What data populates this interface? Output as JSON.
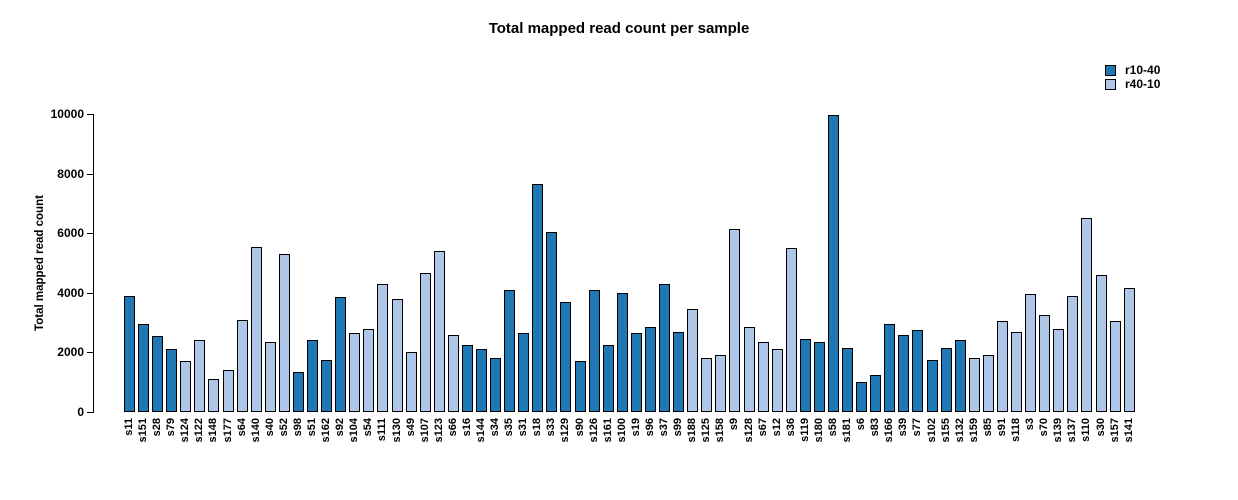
{
  "title": "Total mapped read count per sample",
  "legend": {
    "items": [
      {
        "label": "r10-40",
        "color": "#1f77b4"
      },
      {
        "label": "r40-10",
        "color": "#aec7e8"
      }
    ]
  },
  "chart_data": {
    "type": "bar",
    "title": "Total mapped read count per sample",
    "xlabel": "",
    "ylabel": "Total mapped read count",
    "ylim": [
      0,
      10000
    ],
    "yticks": [
      0,
      2000,
      4000,
      6000,
      8000,
      10000
    ],
    "grid": false,
    "legend_position": "top-right",
    "series_colors": {
      "r10-40": "#1f77b4",
      "r40-10": "#aec7e8"
    },
    "bar_border_color": "#000000",
    "bars": [
      {
        "sample": "s11",
        "value": 3900,
        "group": "r10-40"
      },
      {
        "sample": "s151",
        "value": 2950,
        "group": "r10-40"
      },
      {
        "sample": "s28",
        "value": 2550,
        "group": "r10-40"
      },
      {
        "sample": "s79",
        "value": 2100,
        "group": "r10-40"
      },
      {
        "sample": "s124",
        "value": 1700,
        "group": "r40-10"
      },
      {
        "sample": "s122",
        "value": 2400,
        "group": "r40-10"
      },
      {
        "sample": "s148",
        "value": 1100,
        "group": "r40-10"
      },
      {
        "sample": "s177",
        "value": 1400,
        "group": "r40-10"
      },
      {
        "sample": "s64",
        "value": 3100,
        "group": "r40-10"
      },
      {
        "sample": "s140",
        "value": 5550,
        "group": "r40-10"
      },
      {
        "sample": "s40",
        "value": 2350,
        "group": "r40-10"
      },
      {
        "sample": "s52",
        "value": 5300,
        "group": "r40-10"
      },
      {
        "sample": "s98",
        "value": 1350,
        "group": "r10-40"
      },
      {
        "sample": "s51",
        "value": 2400,
        "group": "r10-40"
      },
      {
        "sample": "s162",
        "value": 1750,
        "group": "r10-40"
      },
      {
        "sample": "s92",
        "value": 3850,
        "group": "r10-40"
      },
      {
        "sample": "s104",
        "value": 2650,
        "group": "r40-10"
      },
      {
        "sample": "s54",
        "value": 2800,
        "group": "r40-10"
      },
      {
        "sample": "s111",
        "value": 4300,
        "group": "r40-10"
      },
      {
        "sample": "s130",
        "value": 3800,
        "group": "r40-10"
      },
      {
        "sample": "s49",
        "value": 2000,
        "group": "r40-10"
      },
      {
        "sample": "s107",
        "value": 4650,
        "group": "r40-10"
      },
      {
        "sample": "s123",
        "value": 5400,
        "group": "r40-10"
      },
      {
        "sample": "s66",
        "value": 2600,
        "group": "r40-10"
      },
      {
        "sample": "s16",
        "value": 2250,
        "group": "r10-40"
      },
      {
        "sample": "s144",
        "value": 2100,
        "group": "r10-40"
      },
      {
        "sample": "s34",
        "value": 1800,
        "group": "r10-40"
      },
      {
        "sample": "s35",
        "value": 4100,
        "group": "r10-40"
      },
      {
        "sample": "s31",
        "value": 2650,
        "group": "r10-40"
      },
      {
        "sample": "s18",
        "value": 7650,
        "group": "r10-40"
      },
      {
        "sample": "s33",
        "value": 6050,
        "group": "r10-40"
      },
      {
        "sample": "s129",
        "value": 3700,
        "group": "r10-40"
      },
      {
        "sample": "s90",
        "value": 1700,
        "group": "r10-40"
      },
      {
        "sample": "s126",
        "value": 4100,
        "group": "r10-40"
      },
      {
        "sample": "s161",
        "value": 2250,
        "group": "r10-40"
      },
      {
        "sample": "s100",
        "value": 4000,
        "group": "r10-40"
      },
      {
        "sample": "s19",
        "value": 2650,
        "group": "r10-40"
      },
      {
        "sample": "s96",
        "value": 2850,
        "group": "r10-40"
      },
      {
        "sample": "s37",
        "value": 4300,
        "group": "r10-40"
      },
      {
        "sample": "s99",
        "value": 2700,
        "group": "r10-40"
      },
      {
        "sample": "s188",
        "value": 3450,
        "group": "r40-10"
      },
      {
        "sample": "s125",
        "value": 1800,
        "group": "r40-10"
      },
      {
        "sample": "s158",
        "value": 1900,
        "group": "r40-10"
      },
      {
        "sample": "s9",
        "value": 6150,
        "group": "r40-10"
      },
      {
        "sample": "s128",
        "value": 2850,
        "group": "r40-10"
      },
      {
        "sample": "s67",
        "value": 2350,
        "group": "r40-10"
      },
      {
        "sample": "s12",
        "value": 2100,
        "group": "r40-10"
      },
      {
        "sample": "s36",
        "value": 5500,
        "group": "r40-10"
      },
      {
        "sample": "s119",
        "value": 2450,
        "group": "r10-40"
      },
      {
        "sample": "s180",
        "value": 2350,
        "group": "r10-40"
      },
      {
        "sample": "s58",
        "value": 9950,
        "group": "r10-40"
      },
      {
        "sample": "s181",
        "value": 2150,
        "group": "r10-40"
      },
      {
        "sample": "s6",
        "value": 1000,
        "group": "r10-40"
      },
      {
        "sample": "s83",
        "value": 1250,
        "group": "r10-40"
      },
      {
        "sample": "s166",
        "value": 2950,
        "group": "r10-40"
      },
      {
        "sample": "s39",
        "value": 2600,
        "group": "r10-40"
      },
      {
        "sample": "s77",
        "value": 2750,
        "group": "r10-40"
      },
      {
        "sample": "s102",
        "value": 1750,
        "group": "r10-40"
      },
      {
        "sample": "s155",
        "value": 2150,
        "group": "r10-40"
      },
      {
        "sample": "s132",
        "value": 2400,
        "group": "r10-40"
      },
      {
        "sample": "s159",
        "value": 1800,
        "group": "r40-10"
      },
      {
        "sample": "s85",
        "value": 1900,
        "group": "r40-10"
      },
      {
        "sample": "s91",
        "value": 3050,
        "group": "r40-10"
      },
      {
        "sample": "s118",
        "value": 2700,
        "group": "r40-10"
      },
      {
        "sample": "s3",
        "value": 3950,
        "group": "r40-10"
      },
      {
        "sample": "s70",
        "value": 3250,
        "group": "r40-10"
      },
      {
        "sample": "s139",
        "value": 2800,
        "group": "r40-10"
      },
      {
        "sample": "s137",
        "value": 3900,
        "group": "r40-10"
      },
      {
        "sample": "s110",
        "value": 6500,
        "group": "r40-10"
      },
      {
        "sample": "s30",
        "value": 4600,
        "group": "r40-10"
      },
      {
        "sample": "s157",
        "value": 3050,
        "group": "r40-10"
      },
      {
        "sample": "s141",
        "value": 4150,
        "group": "r40-10"
      }
    ]
  }
}
